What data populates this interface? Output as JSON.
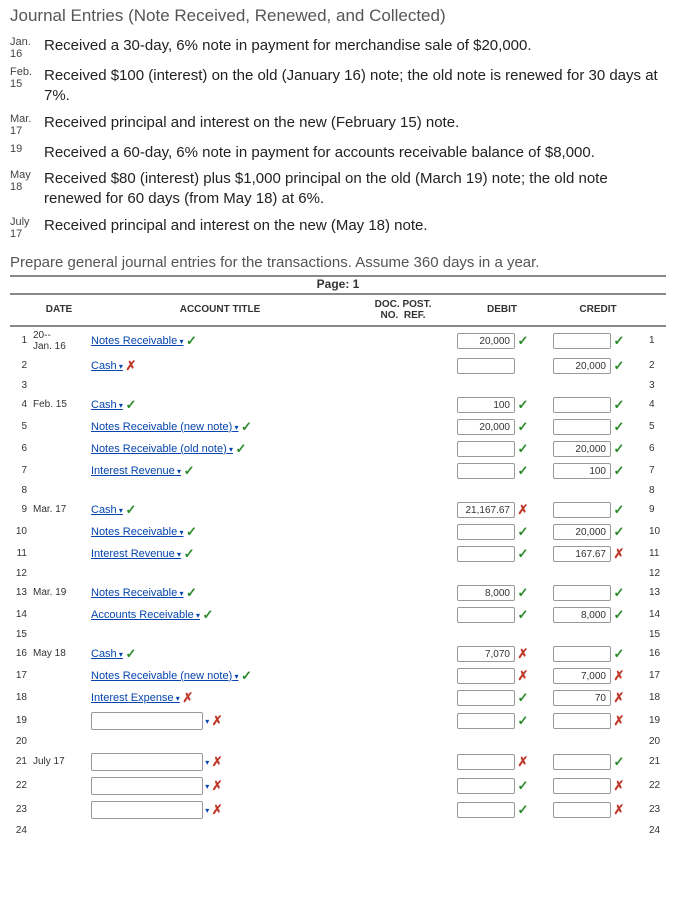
{
  "title": "Journal Entries (Note Received, Renewed, and Collected)",
  "entries": [
    {
      "mon": "Jan.",
      "day": "16",
      "text": "Received a 30-day, 6% note in payment for merchandise sale of $20,000."
    },
    {
      "mon": "Feb.",
      "day": "15",
      "text": "Received $100 (interest) on the old (January 16) note; the old note is renewed for 30 days at 7%."
    },
    {
      "mon": "Mar.",
      "day": "17",
      "text": "Received principal and interest on the new (February 15) note."
    },
    {
      "mon": "",
      "day": "19",
      "text": "Received a 60-day, 6% note in payment for accounts receivable balance of $8,000."
    },
    {
      "mon": "May",
      "day": "18",
      "text": "Received $80 (interest) plus $1,000 principal on the old (March 19) note; the old note renewed for 60 days (from May 18) at 6%."
    },
    {
      "mon": "July",
      "day": "17",
      "text": "Received principal and interest on the new (May 18) note."
    }
  ],
  "instruction": "Prepare general journal entries for the transactions. Assume 360 days in a year.",
  "page_label": "Page: 1",
  "headers": {
    "date": "DATE",
    "acct": "ACCOUNT TITLE",
    "doc": "DOC. POST.",
    "no": "NO.",
    "ref": "REF.",
    "debit": "DEBIT",
    "credit": "CREDIT"
  },
  "rows": [
    {
      "n": "1",
      "date1": "20--",
      "date2": "Jan. 16",
      "acct": "Notes Receivable",
      "acct_mark": "ok",
      "dd": true,
      "debit": "20,000",
      "debit_mark": "ok",
      "credit": "",
      "credit_mark": "ok"
    },
    {
      "n": "2",
      "date1": "",
      "date2": "",
      "acct": "Cash",
      "acct_mark": "bad",
      "dd": true,
      "debit": "",
      "debit_mark": "",
      "credit": "20,000",
      "credit_mark": "ok"
    },
    {
      "n": "3",
      "date1": "",
      "date2": "",
      "acct": "",
      "acct_mark": "",
      "dd": false,
      "debit": null,
      "debit_mark": "",
      "credit": null,
      "credit_mark": ""
    },
    {
      "n": "4",
      "date1": "Feb. 15",
      "date2": "",
      "acct": "Cash",
      "acct_mark": "ok",
      "dd": true,
      "debit": "100",
      "debit_mark": "ok",
      "credit": "",
      "credit_mark": "ok"
    },
    {
      "n": "5",
      "date1": "",
      "date2": "",
      "acct": "Notes Receivable (new note)",
      "acct_mark": "ok",
      "dd": true,
      "debit": "20,000",
      "debit_mark": "ok",
      "credit": "",
      "credit_mark": "ok"
    },
    {
      "n": "6",
      "date1": "",
      "date2": "",
      "acct": "Notes Receivable (old note)",
      "acct_mark": "ok",
      "dd": true,
      "debit": "",
      "debit_mark": "ok",
      "credit": "20,000",
      "credit_mark": "ok"
    },
    {
      "n": "7",
      "date1": "",
      "date2": "",
      "acct": "Interest Revenue",
      "acct_mark": "ok",
      "dd": true,
      "debit": "",
      "debit_mark": "ok",
      "credit": "100",
      "credit_mark": "ok"
    },
    {
      "n": "8",
      "date1": "",
      "date2": "",
      "acct": "",
      "acct_mark": "",
      "dd": false,
      "debit": null,
      "debit_mark": "",
      "credit": null,
      "credit_mark": ""
    },
    {
      "n": "9",
      "date1": "Mar. 17",
      "date2": "",
      "acct": "Cash",
      "acct_mark": "ok",
      "dd": true,
      "debit": "21,167.67",
      "debit_mark": "bad",
      "credit": "",
      "credit_mark": "ok"
    },
    {
      "n": "10",
      "date1": "",
      "date2": "",
      "acct": "Notes Receivable",
      "acct_mark": "ok",
      "dd": true,
      "debit": "",
      "debit_mark": "ok",
      "credit": "20,000",
      "credit_mark": "ok"
    },
    {
      "n": "11",
      "date1": "",
      "date2": "",
      "acct": "Interest Revenue",
      "acct_mark": "ok",
      "dd": true,
      "debit": "",
      "debit_mark": "ok",
      "credit": "167.67",
      "credit_mark": "bad"
    },
    {
      "n": "12",
      "date1": "",
      "date2": "",
      "acct": "",
      "acct_mark": "",
      "dd": false,
      "debit": null,
      "debit_mark": "",
      "credit": null,
      "credit_mark": ""
    },
    {
      "n": "13",
      "date1": "Mar. 19",
      "date2": "",
      "acct": "Notes Receivable",
      "acct_mark": "ok",
      "dd": true,
      "debit": "8,000",
      "debit_mark": "ok",
      "credit": "",
      "credit_mark": "ok"
    },
    {
      "n": "14",
      "date1": "",
      "date2": "",
      "acct": "Accounts Receivable",
      "acct_mark": "ok",
      "dd": true,
      "debit": "",
      "debit_mark": "ok",
      "credit": "8,000",
      "credit_mark": "ok"
    },
    {
      "n": "15",
      "date1": "",
      "date2": "",
      "acct": "",
      "acct_mark": "",
      "dd": false,
      "debit": null,
      "debit_mark": "",
      "credit": null,
      "credit_mark": ""
    },
    {
      "n": "16",
      "date1": "May 18",
      "date2": "",
      "acct": "Cash",
      "acct_mark": "ok",
      "dd": true,
      "debit": "7,070",
      "debit_mark": "bad",
      "credit": "",
      "credit_mark": "ok"
    },
    {
      "n": "17",
      "date1": "",
      "date2": "",
      "acct": "Notes Receivable (new note)",
      "acct_mark": "ok",
      "dd": true,
      "debit": "",
      "debit_mark": "bad",
      "credit": "7,000",
      "credit_mark": "bad"
    },
    {
      "n": "18",
      "date1": "",
      "date2": "",
      "acct": "Interest Expense",
      "acct_mark": "bad",
      "dd": true,
      "debit": "",
      "debit_mark": "ok",
      "credit": "70",
      "credit_mark": "bad"
    },
    {
      "n": "19",
      "date1": "",
      "date2": "",
      "acct": "",
      "acct_mark": "bad",
      "dd": true,
      "box": true,
      "debit": "",
      "debit_mark": "ok",
      "credit": "",
      "credit_mark": "bad"
    },
    {
      "n": "20",
      "date1": "",
      "date2": "",
      "acct": "",
      "acct_mark": "",
      "dd": false,
      "debit": null,
      "debit_mark": "",
      "credit": null,
      "credit_mark": ""
    },
    {
      "n": "21",
      "date1": "July 17",
      "date2": "",
      "acct": "",
      "acct_mark": "bad",
      "dd": true,
      "box": true,
      "debit": "",
      "debit_mark": "bad",
      "credit": "",
      "credit_mark": "ok"
    },
    {
      "n": "22",
      "date1": "",
      "date2": "",
      "acct": "",
      "acct_mark": "bad",
      "dd": true,
      "box": true,
      "debit": "",
      "debit_mark": "ok",
      "credit": "",
      "credit_mark": "bad"
    },
    {
      "n": "23",
      "date1": "",
      "date2": "",
      "acct": "",
      "acct_mark": "bad",
      "dd": true,
      "box": true,
      "debit": "",
      "debit_mark": "ok",
      "credit": "",
      "credit_mark": "bad"
    },
    {
      "n": "24",
      "date1": "",
      "date2": "",
      "acct": "",
      "acct_mark": "",
      "dd": false,
      "debit": null,
      "debit_mark": "",
      "credit": null,
      "credit_mark": ""
    }
  ]
}
